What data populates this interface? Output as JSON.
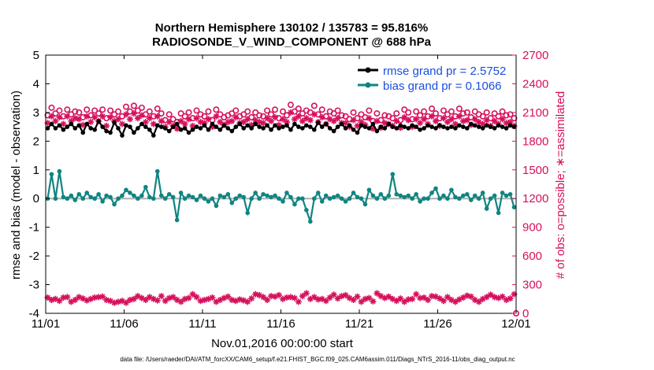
{
  "chart_data": {
    "type": "line",
    "title_line1": "Northern Hemisphere 130102 / 135783 = 95.816%",
    "title_line2": "RADIOSONDE_V_WIND_COMPONENT @ 688 hPa",
    "xlabel": "Nov.01,2016 00:00:00 start",
    "ylabel_left": "rmse and bias (model - observation)",
    "ylabel_right": "# of obs: o=possible; ∗=assimilated",
    "footer": "data file: /Users/raeder/DAI/ATM_forcXX/CAM6_setup/f.e21.FHIST_BGC.f09_025.CAM6assim.011/Diags_NTrS_2016-11/obs_diag_output.nc",
    "xlim": [
      0,
      30
    ],
    "ylim_left": [
      -4,
      5
    ],
    "ylim_right": [
      0,
      2700
    ],
    "xticks": [
      0,
      5,
      10,
      15,
      20,
      25,
      30
    ],
    "xtick_labels": [
      "11/01",
      "11/06",
      "11/11",
      "11/16",
      "11/21",
      "11/26",
      "12/01"
    ],
    "yticks_left": [
      -4,
      -3,
      -2,
      -1,
      0,
      1,
      2,
      3,
      4,
      5
    ],
    "yticks_right": [
      0,
      300,
      600,
      900,
      1200,
      1500,
      1800,
      2100,
      2400,
      2700
    ],
    "legend": {
      "location": "top-right",
      "entries": [
        {
          "label": "rmse grand pr = 2.5752",
          "color": "#000000"
        },
        {
          "label": "bias grand pr = 0.1066",
          "color": "#0f8581"
        }
      ]
    },
    "colors": {
      "rmse": "#000000",
      "bias": "#0f8581",
      "obs": "#d6105c",
      "zero": "#b0b0b0"
    },
    "points_per_day": 4,
    "series": [
      {
        "name": "rmse",
        "axis": "left",
        "values": [
          2.45,
          2.6,
          2.45,
          2.55,
          2.4,
          2.5,
          2.6,
          2.45,
          2.55,
          2.3,
          2.6,
          2.45,
          2.4,
          2.7,
          2.5,
          2.35,
          2.3,
          2.65,
          2.45,
          2.2,
          2.55,
          2.5,
          2.3,
          2.45,
          2.6,
          2.5,
          2.4,
          2.2,
          2.55,
          2.5,
          2.45,
          2.35,
          2.5,
          2.6,
          2.4,
          2.45,
          2.3,
          2.4,
          2.5,
          2.45,
          2.55,
          2.4,
          2.6,
          2.5,
          2.4,
          2.55,
          2.45,
          2.35,
          2.5,
          2.6,
          2.45,
          2.55,
          2.45,
          2.6,
          2.5,
          2.45,
          2.55,
          2.4,
          2.55,
          2.45,
          2.5,
          2.55,
          2.4,
          2.6,
          2.5,
          2.45,
          2.55,
          2.5,
          2.4,
          2.65,
          2.5,
          2.6,
          2.45,
          2.35,
          2.5,
          2.6,
          2.45,
          2.55,
          2.4,
          2.3,
          2.55,
          2.5,
          2.45,
          2.6,
          2.35,
          2.5,
          2.45,
          2.6,
          2.5,
          2.45,
          2.55,
          2.5,
          2.45,
          2.55,
          2.5,
          2.4,
          2.45,
          2.55,
          2.5,
          2.45,
          2.55,
          2.5,
          2.45,
          2.5,
          2.45,
          2.55,
          2.5,
          2.45,
          2.6,
          2.55,
          2.5,
          2.45,
          2.55,
          2.5,
          2.45,
          2.55,
          2.5,
          2.45,
          2.55,
          2.5,
          2.45,
          2.55
        ]
      },
      {
        "name": "bias",
        "axis": "left",
        "values": [
          0.0,
          0.85,
          0.0,
          0.95,
          0.05,
          0.0,
          0.1,
          -0.05,
          0.15,
          0.0,
          0.2,
          0.05,
          0.0,
          0.15,
          -0.1,
          0.1,
          0.05,
          -0.2,
          0.0,
          0.1,
          0.3,
          0.2,
          0.1,
          0.0,
          0.1,
          0.4,
          0.05,
          0.0,
          0.95,
          0.1,
          0.0,
          0.15,
          0.05,
          -0.75,
          0.2,
          0.0,
          0.1,
          0.05,
          -0.05,
          0.1,
          0.0,
          -0.1,
          0.0,
          -0.25,
          0.1,
          0.05,
          0.15,
          -0.15,
          0.0,
          0.1,
          0.05,
          -0.5,
          0.0,
          0.2,
          0.0,
          0.15,
          0.1,
          0.05,
          0.1,
          0.0,
          -0.1,
          0.2,
          0.05,
          -0.2,
          0.0,
          0.0,
          -0.4,
          -0.8,
          0.0,
          0.2,
          -0.1,
          0.1,
          0.0,
          0.05,
          0.1,
          0.0,
          -0.1,
          0.0,
          0.2,
          0.05,
          0.0,
          -0.2,
          0.3,
          0.1,
          0.0,
          0.15,
          0.0,
          0.1,
          0.85,
          0.15,
          0.1,
          0.05,
          0.1,
          0.0,
          0.15,
          -0.1,
          0.0,
          0.0,
          0.2,
          0.35,
          0.0,
          0.1,
          0.0,
          0.3,
          0.05,
          0.0,
          0.1,
          0.15,
          -0.05,
          0.1,
          0.0,
          0.2,
          -0.35,
          0.0,
          0.1,
          -0.5,
          0.2,
          0.1,
          0.15,
          -0.3,
          0.1,
          0.0
        ]
      },
      {
        "name": "obs_possible",
        "axis": "right",
        "values": [
          2070,
          2150,
          2090,
          2120,
          2060,
          2130,
          2080,
          2110,
          2100,
          2050,
          2130,
          2070,
          2120,
          2090,
          2130,
          2040,
          2120,
          2080,
          2110,
          2060,
          2160,
          2110,
          2170,
          2120,
          2150,
          2080,
          2110,
          2060,
          2140,
          2090,
          2020,
          2080,
          2030,
          2000,
          2090,
          2060,
          2100,
          2040,
          2120,
          2080,
          2060,
          2110,
          2020,
          2130,
          2080,
          2050,
          2070,
          2090,
          2120,
          2060,
          2080,
          2110,
          2050,
          2100,
          2070,
          2060,
          2120,
          2080,
          2130,
          2040,
          2110,
          2070,
          2180,
          2110,
          2140,
          2090,
          2120,
          2100,
          2170,
          2080,
          2130,
          2060,
          2110,
          2090,
          2120,
          2070,
          2060,
          2030,
          2100,
          2040,
          2080,
          2050,
          2120,
          2010,
          2090,
          2020,
          2070,
          2060,
          2040,
          2090,
          2020,
          2130,
          2100,
          2030,
          2110,
          2070,
          2110,
          2060,
          2140,
          2090,
          2040,
          2120,
          2080,
          2110,
          2060,
          2140,
          2090,
          2100,
          2050,
          2110,
          2080,
          2060,
          2100,
          2040,
          2090,
          2060,
          2110,
          2070,
          2080,
          2040,
          2060,
          2050
        ]
      },
      {
        "name": "obs_assimilated",
        "axis": "right",
        "values": [
          1990,
          2060,
          2010,
          2050,
          1980,
          2060,
          2010,
          2040,
          2030,
          1970,
          2060,
          2000,
          2050,
          2010,
          2060,
          1960,
          2050,
          2010,
          2030,
          1980,
          2080,
          2030,
          2090,
          2040,
          2070,
          2000,
          2040,
          1980,
          2060,
          2010,
          1950,
          2000,
          1960,
          1930,
          2010,
          1980,
          2030,
          1960,
          2040,
          2000,
          1990,
          2030,
          1950,
          2060,
          2000,
          1970,
          2000,
          2010,
          2050,
          1990,
          2000,
          2030,
          1970,
          2020,
          2000,
          1990,
          2040,
          2010,
          2050,
          1970,
          2030,
          2000,
          2100,
          2030,
          2060,
          2010,
          2040,
          2020,
          2080,
          2000,
          2050,
          1980,
          2030,
          2010,
          2040,
          1990,
          1990,
          1950,
          2020,
          1960,
          2000,
          1970,
          2040,
          1930,
          2010,
          1940,
          1990,
          1980,
          1960,
          2010,
          1940,
          2050,
          2020,
          1950,
          2030,
          1990,
          2030,
          1980,
          2060,
          2010,
          1960,
          2040,
          2000,
          2030,
          1980,
          2060,
          2010,
          2020,
          1970,
          2030,
          2000,
          1980,
          2020,
          1960,
          2010,
          1980,
          2030,
          1990,
          2000,
          1960,
          1980,
          1970
        ]
      },
      {
        "name": "obs_low_assimilated",
        "axis": "right",
        "values": [
          165,
          140,
          150,
          130,
          165,
          170,
          120,
          140,
          170,
          155,
          135,
          150,
          165,
          170,
          175,
          140,
          130,
          110,
          120,
          130,
          110,
          140,
          150,
          180,
          160,
          140,
          170,
          150,
          135,
          180,
          130,
          160,
          170,
          140,
          120,
          150,
          160,
          200,
          170,
          130,
          140,
          150,
          165,
          120,
          140,
          160,
          175,
          140,
          130,
          145,
          135,
          120,
          155,
          200,
          190,
          170,
          140,
          180,
          175,
          190,
          150,
          165,
          170,
          160,
          120,
          180,
          210,
          150,
          170,
          145,
          150,
          130,
          165,
          195,
          155,
          180,
          190,
          160,
          140,
          175,
          120,
          150,
          160,
          125,
          210,
          180,
          160,
          175,
          150,
          130,
          155,
          120,
          145,
          150,
          200,
          160,
          165,
          140,
          180,
          175,
          155,
          130,
          170,
          140,
          120,
          145,
          165,
          185,
          175,
          140,
          120,
          150,
          170,
          195,
          170,
          160,
          175,
          140,
          155,
          200,
          130,
          145,
          150
        ]
      },
      {
        "name": "obs_low_possible",
        "axis": "right",
        "values": [
          0
        ]
      }
    ]
  }
}
